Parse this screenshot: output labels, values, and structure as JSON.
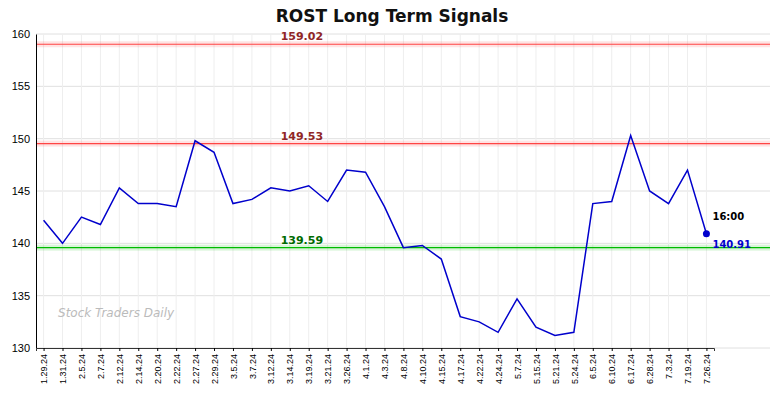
{
  "chart_data": {
    "type": "line",
    "title": "ROST Long Term Signals",
    "categories": [
      "1.29.24",
      "1.31.24",
      "2.5.24",
      "2.7.24",
      "2.12.24",
      "2.14.24",
      "2.20.24",
      "2.22.24",
      "2.27.24",
      "2.29.24",
      "3.5.24",
      "3.7.24",
      "3.12.24",
      "3.14.24",
      "3.19.24",
      "3.21.24",
      "3.26.24",
      "4.1.24",
      "4.3.24",
      "4.8.24",
      "4.10.24",
      "4.15.24",
      "4.17.24",
      "4.22.24",
      "4.24.24",
      "5.7.24",
      "5.15.24",
      "5.21.24",
      "5.24.24",
      "6.5.24",
      "6.10.24",
      "6.17.24",
      "6.28.24",
      "7.3.24",
      "7.19.24",
      "7.26.24"
    ],
    "values": [
      142.2,
      140.0,
      142.5,
      141.8,
      145.3,
      143.8,
      143.8,
      143.5,
      149.8,
      148.7,
      143.8,
      144.2,
      145.3,
      145.0,
      145.5,
      144.0,
      147.0,
      146.8,
      143.5,
      139.59,
      139.8,
      138.5,
      133.0,
      132.5,
      131.5,
      134.7,
      132.0,
      131.2,
      131.5,
      143.8,
      144.0,
      150.3,
      145.0,
      143.8,
      147.0,
      140.91
    ],
    "color": "#0000cc",
    "reference_lines": [
      {
        "value": 159.02,
        "label": "159.02",
        "color": "#ff4444"
      },
      {
        "value": 149.53,
        "label": "149.53",
        "color": "#ff4444"
      },
      {
        "value": 139.59,
        "label": "139.59",
        "color": "#00bb00"
      }
    ],
    "last_point": {
      "value": 140.91,
      "label": "140.91",
      "time_label": "16:00"
    },
    "watermark": "Stock Traders Daily",
    "ylim": [
      130,
      160
    ],
    "yticks": [
      130,
      135,
      140,
      145,
      150,
      155,
      160
    ],
    "grid": true
  }
}
